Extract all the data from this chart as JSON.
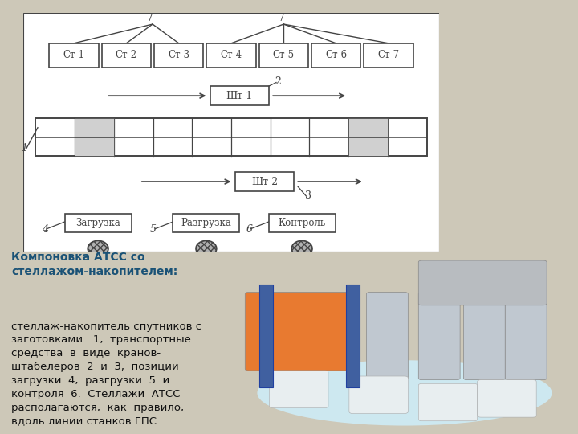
{
  "bg_color": "#cdc8b8",
  "white_box_color": "#ffffff",
  "line_color": "#444444",
  "box_fill": "#ffffff",
  "text_color_bold": "#1a5276",
  "text_color_body": "#111111",
  "stations": [
    "Ст-1",
    "Ст-2",
    "Ст-3",
    "Ст-4",
    "Ст-5",
    "Ст-6",
    "Ст-7"
  ],
  "sht1_label": "Шт-1",
  "sht2_label": "Шт-2",
  "zagr_label": "Загрузка",
  "razgr_label": "Разгрузка",
  "control_label": "Контроль",
  "title_line1": "Компоновка АТСС со",
  "title_line2": "стеллажом-накопителем",
  "body_text_lines": [
    ": стеллаж-накопитель спутников с",
    "заготовками    1,  транспортные",
    "средства  в  виде  кранов-",
    "штабелеров  2  и  3,  позиции",
    "загрузки  4,  разгрузки  5  и",
    "контроля  6.  Стеллажи  АТСС",
    "располагаются,  как  правило,",
    "вдоль линии станков ГПС."
  ]
}
